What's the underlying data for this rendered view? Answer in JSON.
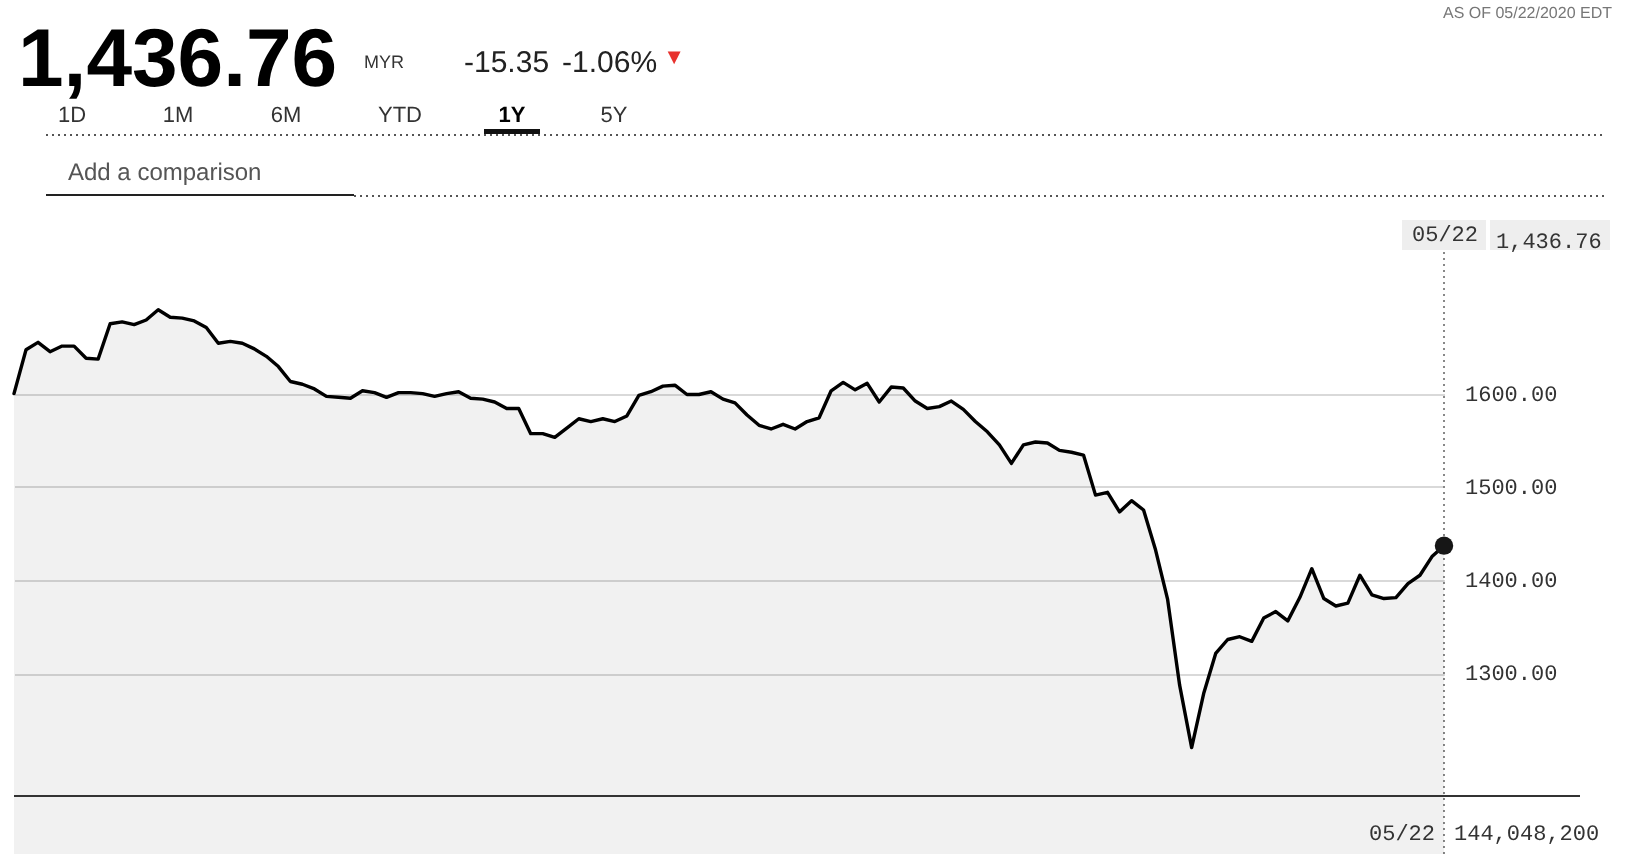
{
  "chart_data": {
    "type": "area",
    "title": "1,436.76",
    "categories": [
      null,
      null,
      null,
      null,
      null,
      null,
      null,
      null,
      null,
      null,
      null,
      null,
      null,
      null,
      null,
      null,
      null,
      null,
      null,
      null,
      null,
      null,
      null,
      null,
      null,
      null,
      null,
      null,
      null,
      null,
      null,
      null,
      null,
      null,
      null,
      null,
      null,
      null,
      null,
      null,
      null,
      null,
      null,
      null,
      null,
      null,
      null,
      null,
      null,
      null,
      null,
      null,
      null,
      null,
      null,
      null,
      null,
      null,
      null,
      null,
      null,
      null,
      null,
      null,
      null,
      null,
      null,
      null,
      null,
      null,
      null,
      null,
      null,
      null,
      null,
      null,
      null,
      null,
      null,
      null,
      null,
      null,
      null,
      null,
      null,
      null,
      null,
      null,
      null,
      null,
      null,
      null,
      null,
      null,
      null,
      null,
      null,
      null,
      null,
      null,
      null,
      null,
      null,
      null,
      null,
      null,
      null,
      null,
      null,
      null,
      null,
      null,
      null,
      null,
      null,
      null,
      null,
      null,
      null,
      "05/22"
    ],
    "series": [
      {
        "color": "#000000",
        "values": [
          1600,
          1647,
          1655,
          1645,
          1651,
          1651,
          1638,
          1637,
          1675,
          1677,
          1674,
          1679,
          1690,
          1682,
          1681,
          1678,
          1671,
          1654,
          1656,
          1654,
          1648,
          1640,
          1629,
          1613,
          1610,
          1605,
          1597,
          1596,
          1595,
          1603,
          1601,
          1596,
          1601,
          1601,
          1600,
          1597,
          1600,
          1602,
          1595,
          1594,
          1591,
          1584,
          1584,
          1557,
          1557,
          1553,
          1563,
          1573,
          1570,
          1573,
          1570,
          1576,
          1598,
          1602,
          1608,
          1609,
          1599,
          1599,
          1602,
          1594,
          1590,
          1577,
          1566,
          1562,
          1567,
          1562,
          1570,
          1574,
          1603,
          1612,
          1604,
          1611,
          1591,
          1607,
          1606,
          1592,
          1584,
          1586,
          1592,
          1583,
          1570,
          1559,
          1545,
          1525,
          1545,
          1548,
          1547,
          1539,
          1537,
          1534,
          1491,
          1494,
          1473,
          1485,
          1475,
          1432,
          1379,
          1287,
          1220,
          1278,
          1321,
          1336,
          1339,
          1334,
          1359,
          1366,
          1356,
          1381,
          1412,
          1380,
          1372,
          1375,
          1405,
          1384,
          1380,
          1381,
          1396,
          1405,
          1425,
          1436.76
        ]
      },
      {
        "type": "scatter",
        "x": [
          "05/22"
        ],
        "values": [
          1436.76
        ],
        "color": "#161616",
        "marker": "circle"
      }
    ],
    "ylim": [
      1168,
      1752
    ],
    "yticks": [
      {
        "value": 1300,
        "label": "1300.00"
      },
      {
        "value": 1400,
        "label": "1400.00"
      },
      {
        "value": 1500,
        "label": "1500.00"
      },
      {
        "value": 1600,
        "label": "1600.00"
      }
    ],
    "grid": "y",
    "ref_lines": [
      {
        "axis": "x",
        "value": "05/22",
        "line_style": "dotted",
        "color": "#888888"
      }
    ],
    "annotations": [
      "AS OF 05/22/2020 EDT",
      "MYR",
      "-15.35",
      "-1.06%",
      "▼",
      "1D",
      "1M",
      "6M",
      "YTD",
      "1Y",
      "5Y",
      "Add a comparison",
      "1,436.76",
      "05/22",
      "144,048,200"
    ]
  }
}
